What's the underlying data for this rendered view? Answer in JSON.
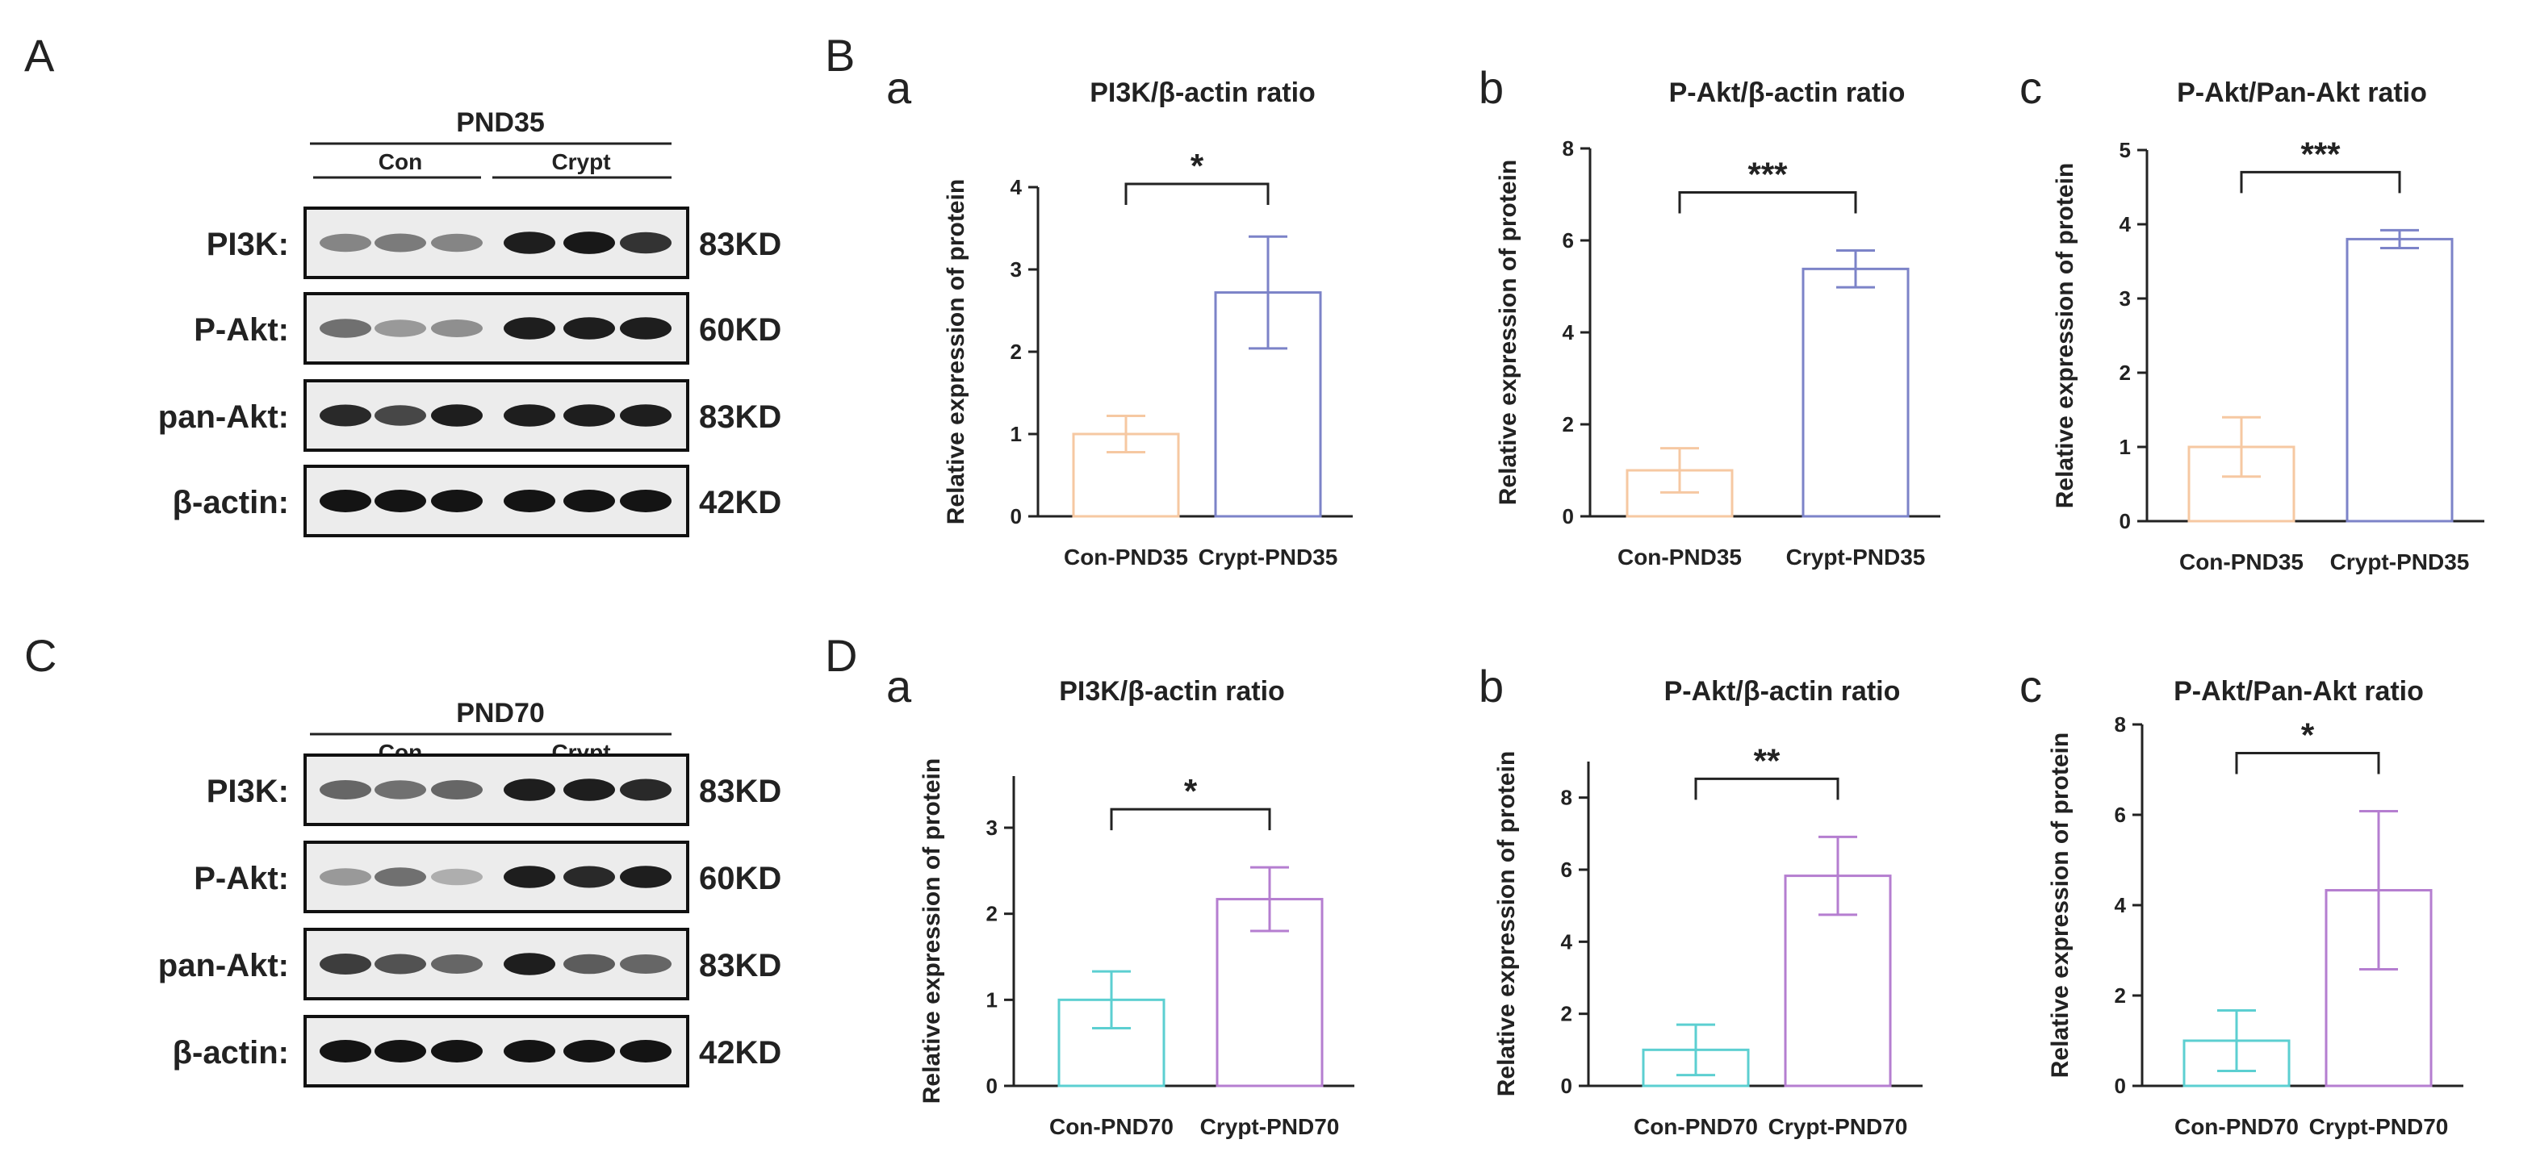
{
  "panels": {
    "A": "A",
    "B": "B",
    "C": "C",
    "D": "D"
  },
  "blots": [
    {
      "id": "A",
      "timepoint": "PND35",
      "groups": [
        "Con",
        "Crypt"
      ],
      "rows": [
        {
          "label": "PI3K:",
          "size": "83KD",
          "intensity": [
            0.45,
            0.5,
            0.45,
            0.95,
            0.98,
            0.85
          ]
        },
        {
          "label": "P-Akt:",
          "size": "60KD",
          "intensity": [
            0.55,
            0.35,
            0.4,
            0.95,
            0.95,
            0.95
          ]
        },
        {
          "label": "pan-Akt:",
          "size": "83KD",
          "intensity": [
            0.9,
            0.75,
            0.95,
            0.95,
            0.95,
            0.95
          ]
        },
        {
          "label": "β-actin:",
          "size": "42KD",
          "intensity": [
            1,
            1,
            1,
            1,
            1,
            1
          ]
        }
      ]
    },
    {
      "id": "C",
      "timepoint": "PND70",
      "groups": [
        "Con",
        "Crypt"
      ],
      "rows": [
        {
          "label": "PI3K:",
          "size": "83KD",
          "intensity": [
            0.6,
            0.55,
            0.6,
            0.95,
            0.95,
            0.9
          ]
        },
        {
          "label": "P-Akt:",
          "size": "60KD",
          "intensity": [
            0.35,
            0.55,
            0.25,
            0.95,
            0.9,
            0.95
          ]
        },
        {
          "label": "pan-Akt:",
          "size": "83KD",
          "intensity": [
            0.8,
            0.7,
            0.6,
            0.95,
            0.65,
            0.6
          ]
        },
        {
          "label": "β-actin:",
          "size": "42KD",
          "intensity": [
            1,
            1,
            1,
            1,
            1,
            1
          ]
        }
      ]
    }
  ],
  "colors": {
    "con35": "#f6c8a2",
    "crypt35": "#7c83c8",
    "con70": "#5ccfd1",
    "crypt70": "#b57ed0"
  },
  "chart_data": [
    {
      "id": "Ba",
      "panel": "B",
      "sub": "a",
      "type": "bar",
      "title": "PI3K/β-actin ratio",
      "ylabel": "Relative expression of protein",
      "categories": [
        "Con-PND35",
        "Crypt-PND35"
      ],
      "values": [
        1.0,
        2.72
      ],
      "errors": [
        0.22,
        0.68
      ],
      "ylim": [
        0,
        4
      ],
      "yticks": [
        0,
        1,
        2,
        3,
        4
      ],
      "significance": "*",
      "colors": [
        "#f6c8a2",
        "#7c83c8"
      ]
    },
    {
      "id": "Bb",
      "panel": "B",
      "sub": "b",
      "type": "bar",
      "title": "P-Akt/β-actin ratio",
      "ylabel": "Relative expression of protein",
      "categories": [
        "Con-PND35",
        "Crypt-PND35"
      ],
      "values": [
        1.0,
        5.38
      ],
      "errors": [
        0.48,
        0.4
      ],
      "ylim": [
        0,
        8
      ],
      "yticks": [
        0,
        2,
        4,
        6,
        8
      ],
      "significance": "***",
      "colors": [
        "#f6c8a2",
        "#7c83c8"
      ]
    },
    {
      "id": "Bc",
      "panel": "B",
      "sub": "c",
      "type": "bar",
      "title": "P-Akt/Pan-Akt ratio",
      "ylabel": "Relative expression of protein",
      "categories": [
        "Con-PND35",
        "Crypt-PND35"
      ],
      "values": [
        1.0,
        3.8
      ],
      "errors": [
        0.4,
        0.12
      ],
      "ylim": [
        0,
        5
      ],
      "yticks": [
        0,
        1,
        2,
        3,
        4,
        5
      ],
      "significance": "***",
      "colors": [
        "#f6c8a2",
        "#7c83c8"
      ]
    },
    {
      "id": "Da",
      "panel": "D",
      "sub": "a",
      "type": "bar",
      "title": "PI3K/β-actin ratio",
      "ylabel": "Relative expression of protein",
      "categories": [
        "Con-PND70",
        "Crypt-PND70"
      ],
      "values": [
        1.0,
        2.17
      ],
      "errors": [
        0.33,
        0.37
      ],
      "ylim": [
        0,
        3.6
      ],
      "yticks": [
        0,
        1,
        2,
        3
      ],
      "significance": "*",
      "colors": [
        "#5ccfd1",
        "#b57ed0"
      ]
    },
    {
      "id": "Db",
      "panel": "D",
      "sub": "b",
      "type": "bar",
      "title": "P-Akt/β-actin ratio",
      "ylabel": "Relative expression of protein",
      "categories": [
        "Con-PND70",
        "Crypt-PND70"
      ],
      "values": [
        1.0,
        5.83
      ],
      "errors": [
        0.7,
        1.08
      ],
      "ylim": [
        0,
        9
      ],
      "yticks": [
        0,
        2,
        4,
        6,
        8
      ],
      "significance": "**",
      "colors": [
        "#5ccfd1",
        "#b57ed0"
      ]
    },
    {
      "id": "Dc",
      "panel": "D",
      "sub": "c",
      "type": "bar",
      "title": "P-Akt/Pan-Akt ratio",
      "ylabel": "Relative expression of protein",
      "categories": [
        "Con-PND70",
        "Crypt-PND70"
      ],
      "values": [
        1.0,
        4.33
      ],
      "errors": [
        0.67,
        1.75
      ],
      "ylim": [
        0,
        8
      ],
      "yticks": [
        0,
        2,
        4,
        6,
        8
      ],
      "significance": "*",
      "colors": [
        "#5ccfd1",
        "#b57ed0"
      ]
    }
  ]
}
